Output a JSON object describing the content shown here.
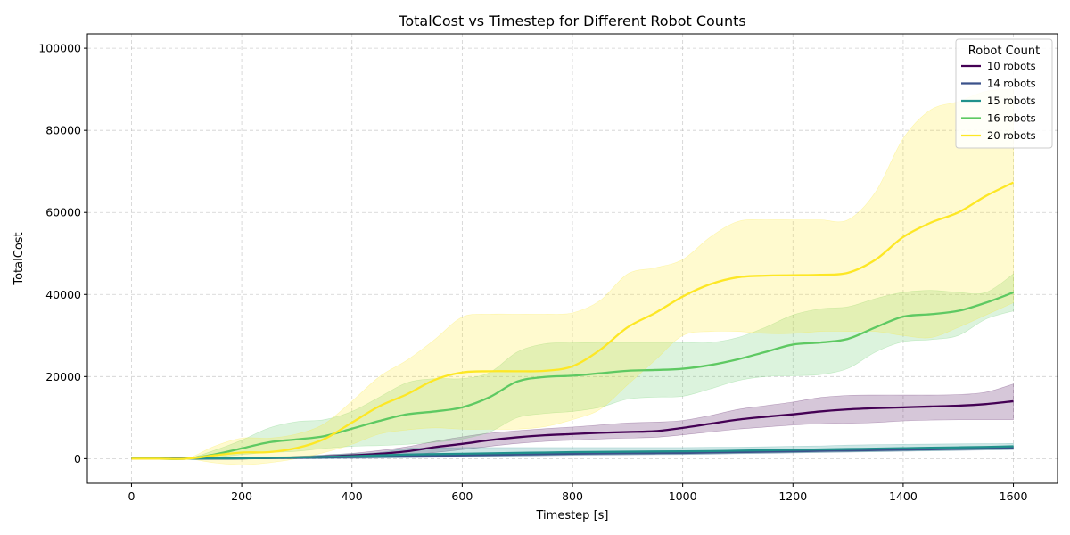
{
  "chart_data": {
    "type": "line",
    "title": "TotalCost vs Timestep for Different Robot Counts",
    "xlabel": "Timestep [s]",
    "ylabel": "TotalCost",
    "xlim": [
      -80,
      1680
    ],
    "ylim": [
      -6000,
      103500
    ],
    "xticks": [
      0,
      200,
      400,
      600,
      800,
      1000,
      1200,
      1400,
      1600
    ],
    "yticks": [
      0,
      20000,
      40000,
      60000,
      80000,
      100000
    ],
    "grid": true,
    "legend": {
      "title": "Robot Count",
      "position": "top-right"
    },
    "x": [
      0,
      50,
      100,
      150,
      200,
      250,
      300,
      350,
      400,
      450,
      500,
      550,
      600,
      650,
      700,
      750,
      800,
      850,
      900,
      950,
      1000,
      1050,
      1100,
      1150,
      1200,
      1250,
      1300,
      1350,
      1400,
      1450,
      1500,
      1550,
      1600
    ],
    "series": [
      {
        "name": "10 robots",
        "color": "#440154",
        "values": [
          0,
          0,
          0,
          50,
          100,
          200,
          300,
          500,
          800,
          1200,
          1800,
          2800,
          3600,
          4500,
          5200,
          5700,
          6000,
          6300,
          6500,
          6700,
          7500,
          8500,
          9500,
          10200,
          10800,
          11500,
          12000,
          12300,
          12500,
          12700,
          12900,
          13300,
          14000
        ],
        "lower": [
          0,
          0,
          0,
          0,
          0,
          0,
          0,
          100,
          300,
          500,
          800,
          1500,
          2200,
          3000,
          3700,
          4200,
          4500,
          4800,
          5000,
          5200,
          5800,
          6500,
          7200,
          7700,
          8200,
          8500,
          8600,
          8800,
          9200,
          9400,
          9500,
          9500,
          9500
        ],
        "upper": [
          200,
          200,
          200,
          200,
          300,
          400,
          500,
          900,
          1300,
          2000,
          2900,
          4200,
          5300,
          6200,
          6800,
          7300,
          7700,
          8200,
          8700,
          8900,
          9300,
          10500,
          12000,
          12900,
          13800,
          14900,
          15400,
          15500,
          15500,
          15500,
          15600,
          16200,
          18200
        ]
      },
      {
        "name": "14 robots",
        "color": "#3b528b",
        "values": [
          0,
          0,
          0,
          50,
          100,
          150,
          200,
          300,
          400,
          500,
          600,
          700,
          800,
          900,
          1000,
          1100,
          1200,
          1250,
          1300,
          1350,
          1400,
          1500,
          1600,
          1700,
          1800,
          1900,
          2000,
          2100,
          2200,
          2300,
          2400,
          2500,
          2600
        ],
        "lower": [
          0,
          0,
          0,
          0,
          0,
          0,
          0,
          0,
          0,
          100,
          200,
          300,
          400,
          500,
          600,
          700,
          800,
          850,
          900,
          950,
          1000,
          1100,
          1200,
          1300,
          1400,
          1500,
          1600,
          1700,
          1800,
          1900,
          2000,
          2100,
          2200
        ],
        "upper": [
          200,
          200,
          200,
          200,
          200,
          300,
          400,
          600,
          800,
          900,
          1000,
          1100,
          1200,
          1300,
          1400,
          1500,
          1600,
          1650,
          1700,
          1750,
          1800,
          1900,
          2000,
          2100,
          2200,
          2300,
          2400,
          2500,
          2600,
          2700,
          2800,
          2900,
          3000
        ]
      },
      {
        "name": "15 robots",
        "color": "#21918c",
        "values": [
          0,
          0,
          0,
          50,
          100,
          200,
          300,
          450,
          600,
          800,
          1000,
          1100,
          1200,
          1300,
          1400,
          1500,
          1600,
          1650,
          1700,
          1750,
          1800,
          1850,
          1950,
          2050,
          2150,
          2250,
          2350,
          2450,
          2550,
          2650,
          2750,
          2850,
          3000
        ],
        "lower": [
          0,
          0,
          0,
          0,
          0,
          0,
          0,
          0,
          100,
          200,
          300,
          400,
          500,
          600,
          700,
          800,
          900,
          950,
          1000,
          1050,
          1100,
          1150,
          1250,
          1350,
          1450,
          1550,
          1650,
          1750,
          1850,
          1950,
          2050,
          2150,
          2250
        ],
        "upper": [
          200,
          200,
          200,
          200,
          300,
          400,
          600,
          900,
          1200,
          1500,
          2500,
          2600,
          2700,
          2700,
          2700,
          2700,
          2700,
          2700,
          2700,
          2700,
          2700,
          2750,
          2800,
          2900,
          3000,
          3100,
          3300,
          3400,
          3500,
          3550,
          3600,
          3650,
          3700
        ]
      },
      {
        "name": "16 robots",
        "color": "#5ec962",
        "values": [
          0,
          0,
          0,
          1000,
          2500,
          4000,
          4700,
          5500,
          7300,
          9200,
          10800,
          11500,
          12500,
          15000,
          18800,
          19900,
          20200,
          20800,
          21400,
          21600,
          21900,
          22800,
          24200,
          26000,
          27800,
          28300,
          29200,
          32000,
          34600,
          35200,
          36000,
          38000,
          40500
        ],
        "lower": [
          0,
          0,
          0,
          300,
          1000,
          1500,
          1800,
          2500,
          3000,
          3200,
          3500,
          4000,
          4800,
          6500,
          10000,
          11000,
          11500,
          12500,
          14500,
          15000,
          15200,
          17000,
          19000,
          20000,
          20200,
          20500,
          22000,
          26000,
          28500,
          29000,
          30000,
          34000,
          36000
        ],
        "upper": [
          0,
          0,
          0,
          2000,
          4500,
          7500,
          9000,
          9500,
          11500,
          15000,
          18500,
          19500,
          19500,
          21000,
          26000,
          28000,
          28200,
          28300,
          28300,
          28300,
          28300,
          28300,
          29500,
          32000,
          35000,
          36500,
          37000,
          39000,
          40500,
          41000,
          40500,
          40500,
          45000
        ]
      },
      {
        "name": "20 robots",
        "color": "#fde725",
        "values": [
          0,
          0,
          0,
          800,
          1500,
          1600,
          2600,
          4800,
          8800,
          12800,
          15700,
          19200,
          21000,
          21300,
          21300,
          21400,
          22500,
          26500,
          32000,
          35500,
          39500,
          42500,
          44200,
          44600,
          44700,
          44800,
          45300,
          48500,
          54000,
          57500,
          60000,
          64000,
          67300
        ],
        "lower": [
          0,
          0,
          0,
          -1000,
          -1500,
          -1000,
          0,
          1500,
          3500,
          6000,
          7000,
          7500,
          7200,
          7200,
          7200,
          7800,
          9500,
          12000,
          18000,
          24000,
          30000,
          31000,
          31000,
          30500,
          30500,
          31000,
          31000,
          31000,
          30000,
          29500,
          32000,
          35000,
          38000
        ],
        "upper": [
          0,
          0,
          0,
          3000,
          5000,
          5000,
          6000,
          8500,
          14000,
          20000,
          24000,
          29000,
          34500,
          35200,
          35200,
          35200,
          35500,
          38500,
          45000,
          46500,
          48500,
          54000,
          57800,
          58200,
          58200,
          58200,
          58200,
          65000,
          78000,
          85000,
          87000,
          89500,
          90000
        ]
      }
    ]
  }
}
